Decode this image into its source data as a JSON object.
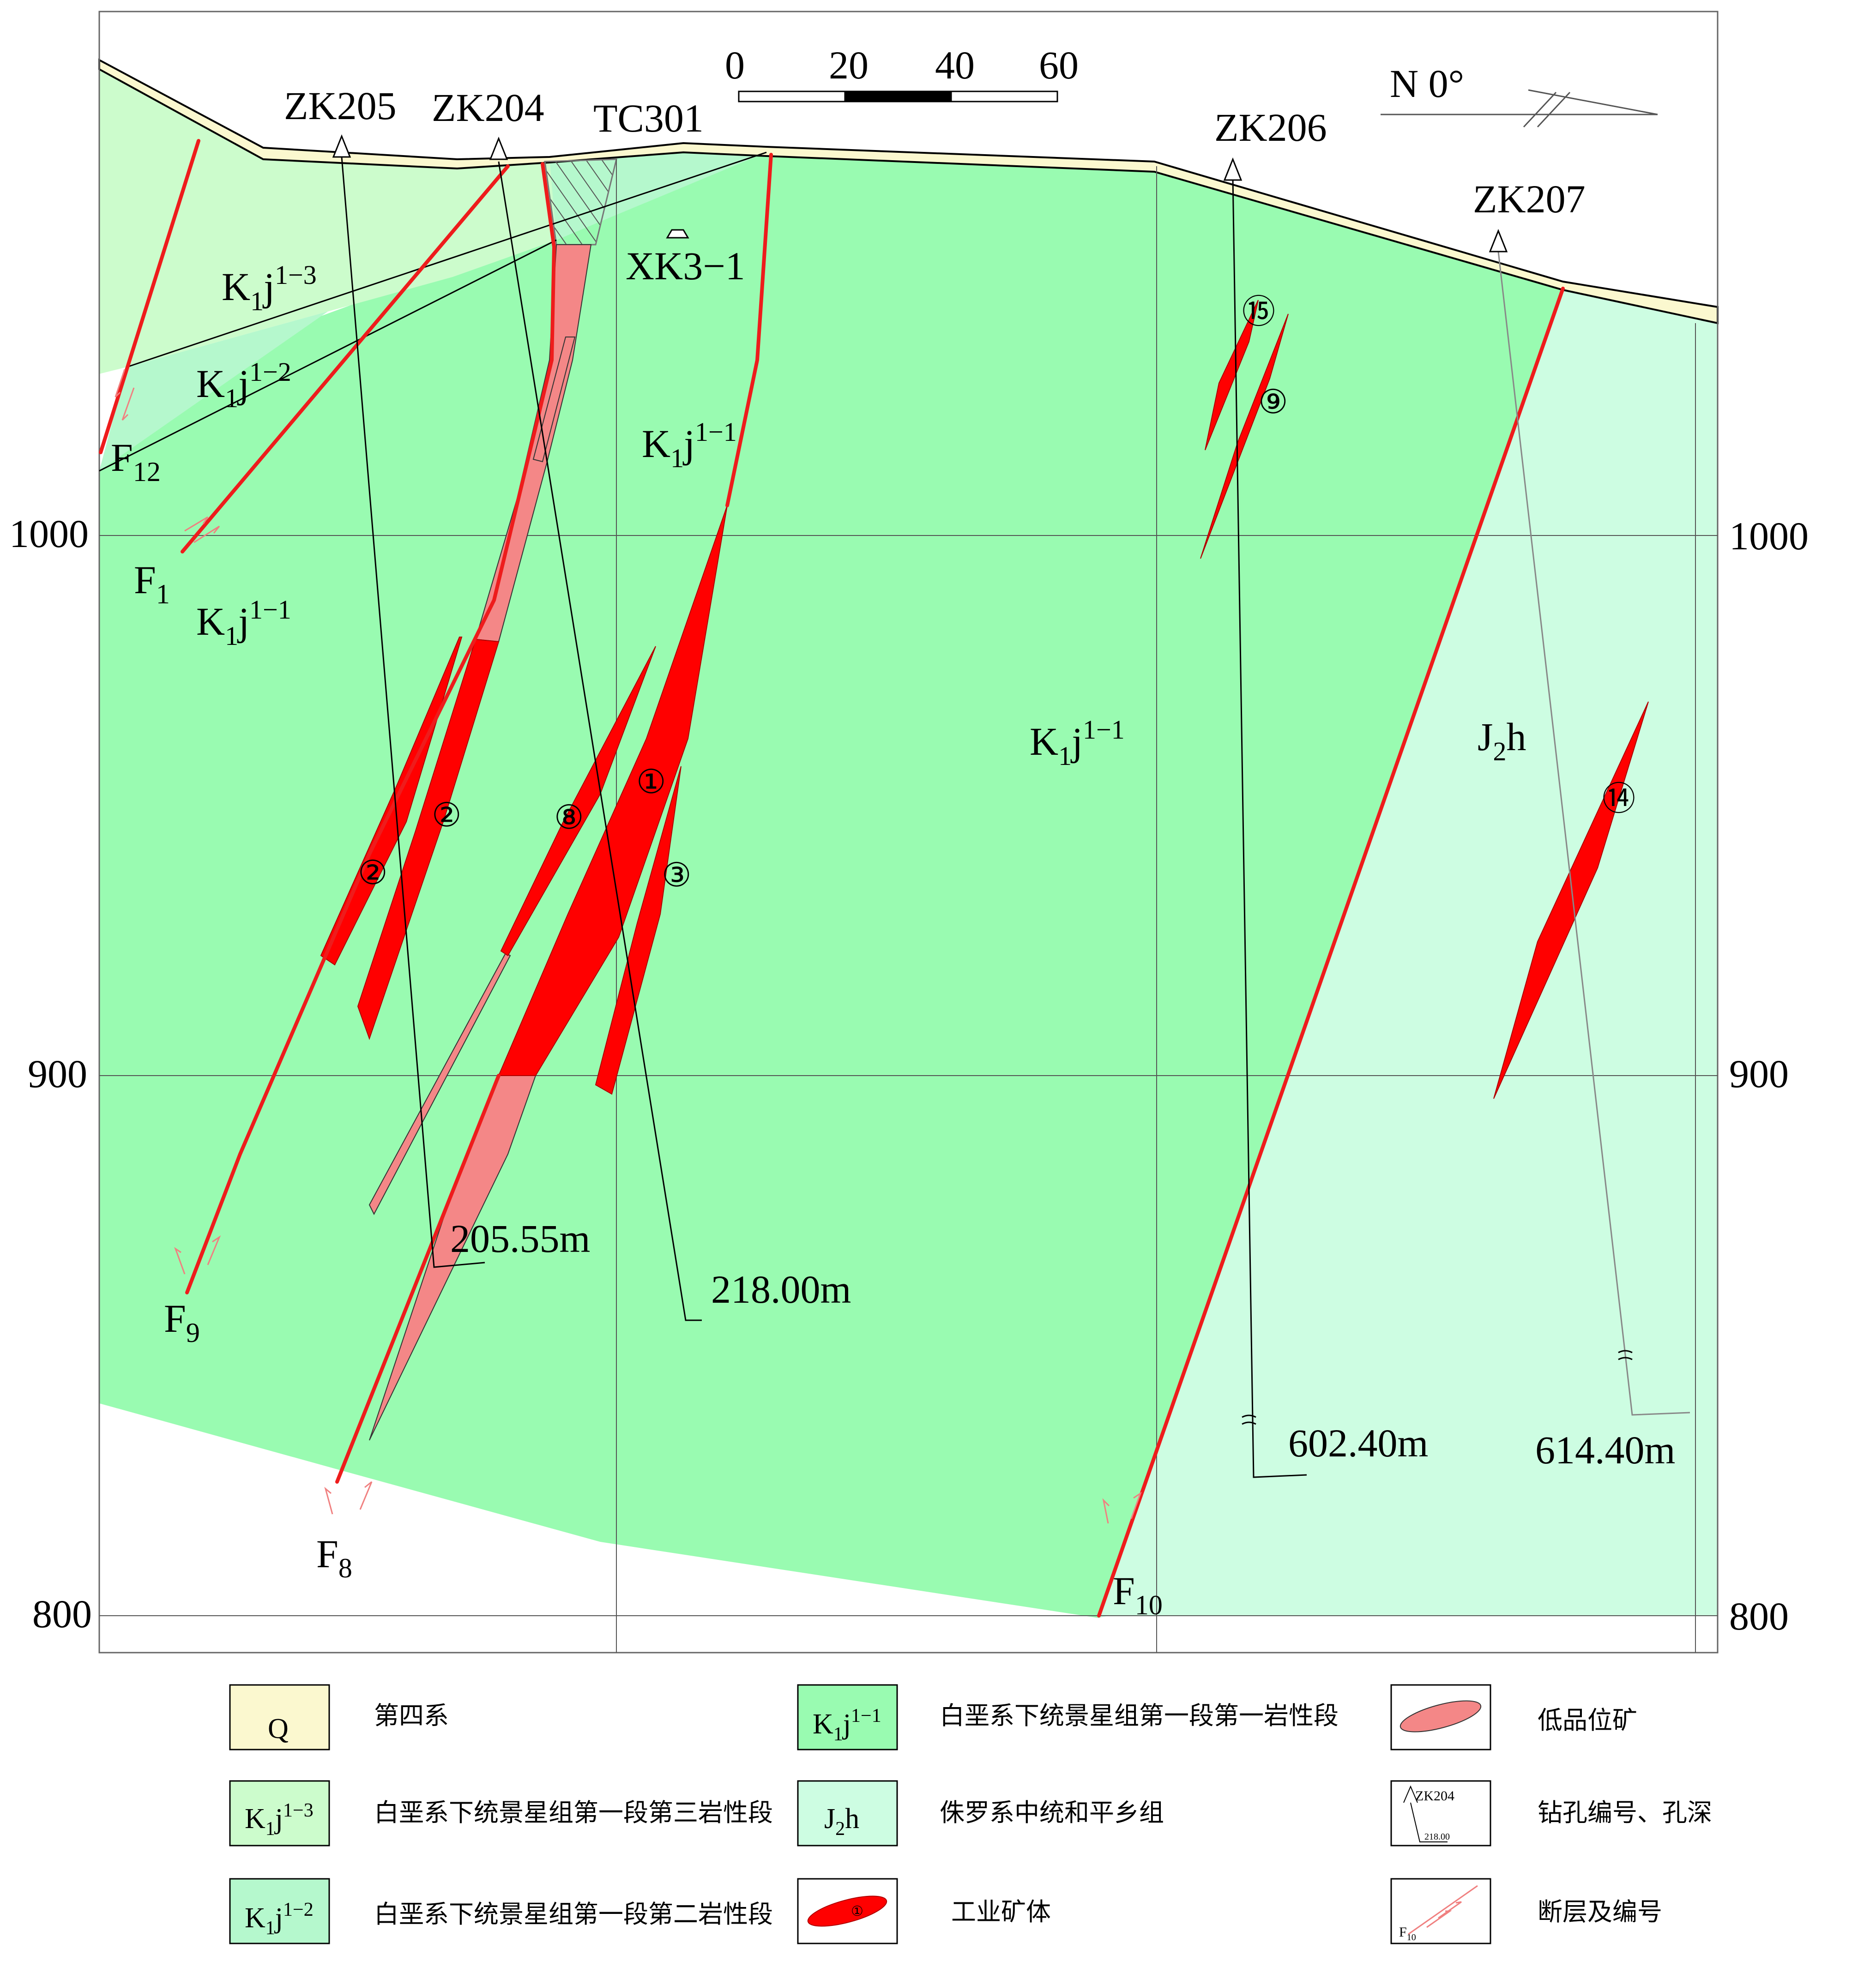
{
  "scale_bar": {
    "ticks": [
      "0",
      "20",
      "40",
      "60"
    ]
  },
  "north": "N 0°",
  "elevation_ticks": [
    "1000",
    "900",
    "800"
  ],
  "boreholes": [
    {
      "id": "ZK205",
      "depth": "205.55m"
    },
    {
      "id": "ZK204",
      "depth": "218.00m"
    },
    {
      "id": "ZK206",
      "depth": "602.40m"
    },
    {
      "id": "ZK207",
      "depth": "614.40m"
    }
  ],
  "trench": "TC301",
  "adit": "XK3−1",
  "faults": [
    {
      "base": "F",
      "sub": "12"
    },
    {
      "base": "F",
      "sub": "1"
    },
    {
      "base": "F",
      "sub": "9"
    },
    {
      "base": "F",
      "sub": "8"
    },
    {
      "base": "F",
      "sub": "10"
    }
  ],
  "strata": {
    "k13": {
      "base": "K",
      "sub": "1",
      "mid": "j",
      "sup": "1−3"
    },
    "k12": {
      "base": "K",
      "sub": "1",
      "mid": "j",
      "sup": "1−2"
    },
    "k11": {
      "base": "K",
      "sub": "1",
      "mid": "j",
      "sup": "1−1"
    },
    "j2h": {
      "base": "J",
      "sub": "2",
      "mid": "h"
    }
  },
  "ore_numbers": [
    "①",
    "②",
    "②",
    "⑧",
    "③",
    "⑮",
    "⑨",
    "⑭"
  ],
  "legend": {
    "q_code": "Q",
    "q_label": "第四系",
    "k13_label": "白垩系下统景星组第一段第三岩性段",
    "k12_label": "白垩系下统景星组第一段第二岩性段",
    "k11_label": "白垩系下统景星组第一段第一岩性段",
    "j2h_label": "侏罗系中统和平乡组",
    "industrial_label": "工业矿体",
    "industrial_symbol": "①",
    "lowgrade_label": "低品位矿",
    "drill_label": "钻孔编号、孔深",
    "drill_sample_id": "ZK204",
    "drill_sample_depth": "218.00",
    "fault_label": "断层及编号",
    "fault_sample": "F",
    "fault_sample_sub": "10"
  },
  "colors": {
    "quaternary": "#fbf8cf",
    "k13": "#ccfccc",
    "k12": "#b5f8cd",
    "k11": "#99fbb1",
    "j2h": "#cdfde2",
    "fault": "#ee1c1c",
    "ore": "#ff0000",
    "low_grade": "#f48787"
  }
}
